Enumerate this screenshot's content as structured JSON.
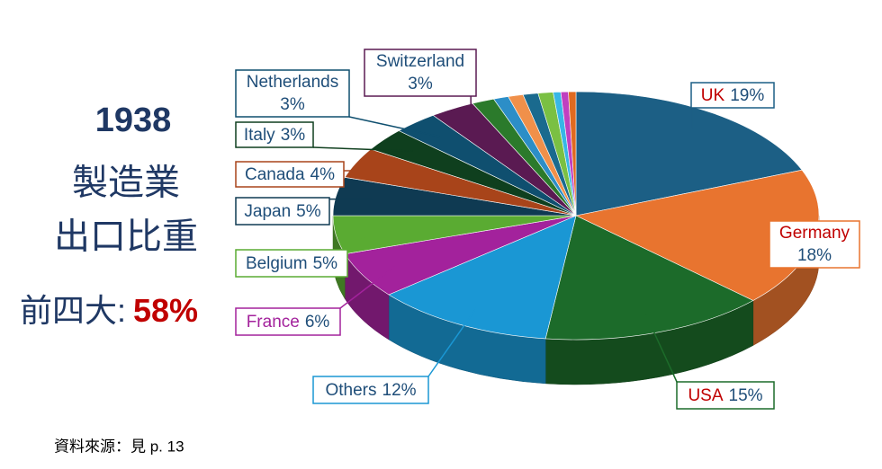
{
  "chart_data": {
    "type": "pie",
    "title": "1938",
    "subtitle_lines": [
      "製造業",
      "出口比重"
    ],
    "annotation": {
      "label": "前四大:",
      "value": "58%"
    },
    "source": "資料來源：見 p. 13",
    "categories": [
      "UK",
      "Germany",
      "USA",
      "Others",
      "France",
      "Belgium",
      "Japan",
      "Canada",
      "Italy",
      "Netherlands",
      "Switzerland",
      null,
      null,
      null,
      null,
      null,
      null,
      null,
      null
    ],
    "values": [
      19,
      18,
      15,
      12,
      6,
      5,
      5,
      4,
      3,
      3,
      3,
      1.5,
      1,
      1,
      1,
      1,
      0.5,
      0.5,
      0.5
    ],
    "value_labels": [
      "19%",
      "18%",
      "15%",
      "12%",
      "6%",
      "5%",
      "5%",
      "4%",
      "3%",
      "3%",
      "3%",
      null,
      null,
      null,
      null,
      null,
      null,
      null,
      null
    ],
    "colors": [
      "#1c5f85",
      "#e8742f",
      "#1c6b2a",
      "#1a97d4",
      "#a3229c",
      "#5aab32",
      "#0f3a52",
      "#a8441a",
      "#0f3f1e",
      "#0f4f6f",
      "#5a1a52",
      "#2b7a2b",
      "#2c8ec7",
      "#f0904a",
      "#1a6a8e",
      "#7ac043",
      "#37b7e6",
      "#c040c0",
      "#e06a20"
    ]
  }
}
